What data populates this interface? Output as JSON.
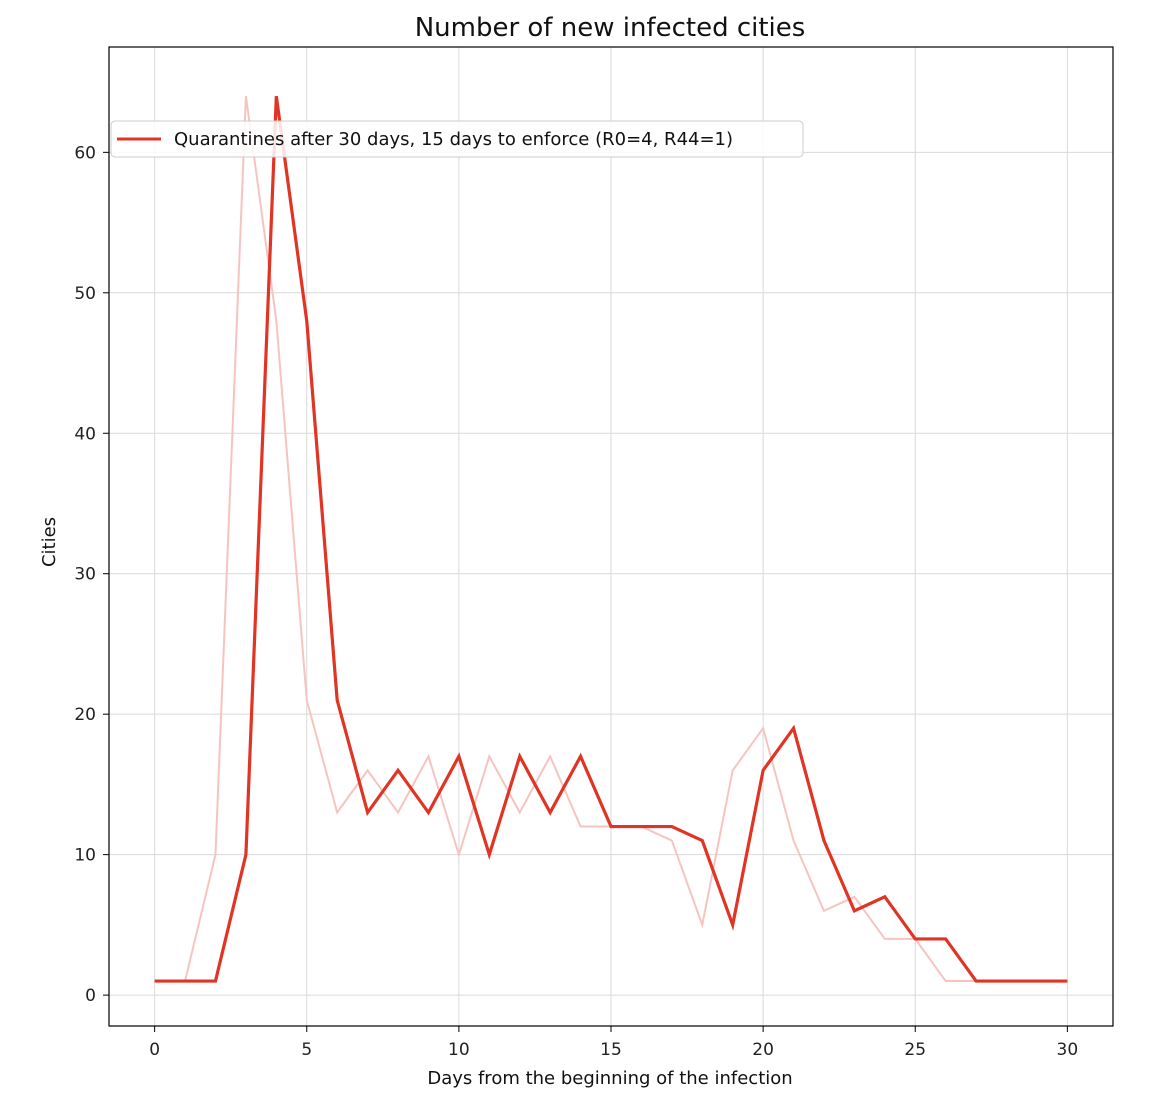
{
  "chart_data": {
    "type": "line",
    "title": "Number of new infected cities",
    "xlabel": "Days from the beginning of the infection",
    "ylabel": "Cities",
    "xlim": [
      -1.5,
      31.5
    ],
    "ylim": [
      -2.2,
      67.5
    ],
    "xticks": [
      0,
      5,
      10,
      15,
      20,
      25,
      30
    ],
    "yticks": [
      0,
      10,
      20,
      30,
      40,
      50,
      60
    ],
    "grid": true,
    "legend": "upper-left",
    "series": [
      {
        "name": "Quarantines after 30 days, 15 days to enforce (R0=4, R44=1)",
        "color": "#e03424",
        "emphasis": "primary",
        "x": [
          0,
          1,
          2,
          3,
          4,
          5,
          6,
          7,
          8,
          9,
          10,
          11,
          12,
          13,
          14,
          15,
          16,
          17,
          18,
          19,
          20,
          21,
          22,
          23,
          24,
          25,
          26,
          27,
          28,
          29,
          30
        ],
        "values": [
          1,
          1,
          1,
          10,
          64,
          48,
          21,
          13,
          16,
          13,
          17,
          10,
          17,
          13,
          17,
          12,
          12,
          12,
          11,
          5,
          16,
          19,
          11,
          6,
          7,
          4,
          4,
          1,
          1,
          1,
          1
        ]
      },
      {
        "color": "#f6c4c0",
        "emphasis": "faint",
        "x": [
          0,
          1,
          2,
          3,
          4,
          5,
          6,
          7,
          8,
          9,
          10,
          11,
          12,
          13,
          14,
          15,
          16,
          17,
          18,
          19,
          20,
          21,
          22,
          23,
          24,
          25,
          26,
          27,
          28,
          29,
          30
        ],
        "values": [
          1,
          1,
          10,
          64,
          48,
          21,
          13,
          16,
          13,
          17,
          10,
          17,
          13,
          17,
          12,
          12,
          12,
          11,
          5,
          16,
          19,
          11,
          6,
          7,
          4,
          4,
          1,
          1,
          1,
          1,
          1
        ]
      }
    ]
  }
}
